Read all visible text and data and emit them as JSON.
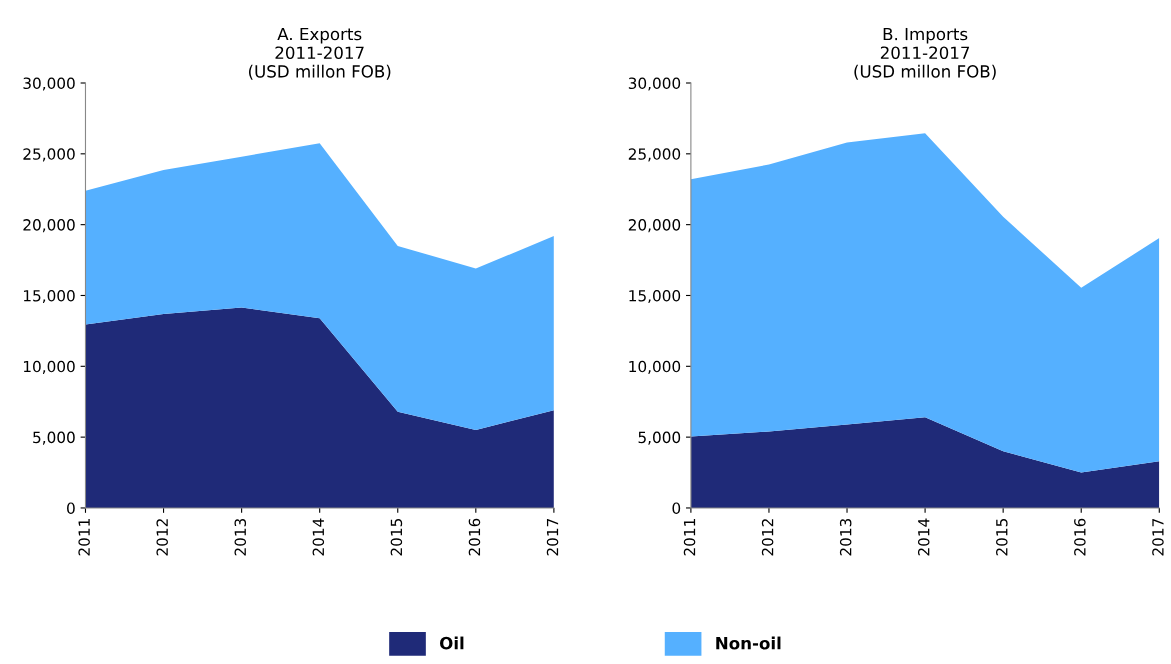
{
  "chart_data": [
    {
      "type": "area",
      "stacked": true,
      "title": "A. Exports\n2011-2017\n(USD millon FOB)",
      "categories": [
        "2011",
        "2012",
        "2013",
        "2014",
        "2015",
        "2016",
        "2017"
      ],
      "ylim": [
        0,
        30000
      ],
      "yticks": [
        {
          "value": 0,
          "label": "0"
        },
        {
          "value": 5000,
          "label": "5,000"
        },
        {
          "value": 10000,
          "label": "10,000"
        },
        {
          "value": 15000,
          "label": "15,000"
        },
        {
          "value": 20000,
          "label": "20,000"
        },
        {
          "value": 25000,
          "label": "25,000"
        },
        {
          "value": 30000,
          "label": "30,000"
        }
      ],
      "grid": false,
      "series": [
        {
          "color": "#1f2a78",
          "values": [
            12950,
            13700,
            14150,
            13400,
            6800,
            5500,
            6900
          ]
        },
        {
          "color": "#55b0ff",
          "values": [
            9450,
            10150,
            10650,
            12350,
            11700,
            11400,
            12300
          ]
        }
      ]
    },
    {
      "type": "area",
      "stacked": true,
      "title": "B. Imports\n2011-2017\n(USD millon FOB)",
      "categories": [
        "2011",
        "2012",
        "2013",
        "2014",
        "2015",
        "2016",
        "2017"
      ],
      "ylim": [
        0,
        30000
      ],
      "yticks": [
        {
          "value": 0,
          "label": "0"
        },
        {
          "value": 5000,
          "label": "5,000"
        },
        {
          "value": 10000,
          "label": "10,000"
        },
        {
          "value": 15000,
          "label": "15,000"
        },
        {
          "value": 20000,
          "label": "20,000"
        },
        {
          "value": 25000,
          "label": "25,000"
        },
        {
          "value": 30000,
          "label": "30,000"
        }
      ],
      "grid": false,
      "legend": "bottom",
      "series": [
        {
          "name": "Oil",
          "color": "#1f2a78",
          "values": [
            5050,
            5400,
            5900,
            6400,
            4000,
            2500,
            3300
          ]
        },
        {
          "name": "Non-oil",
          "color": "#55b0ff",
          "values": [
            18150,
            18850,
            19900,
            20050,
            16550,
            13050,
            15750
          ]
        }
      ]
    }
  ]
}
